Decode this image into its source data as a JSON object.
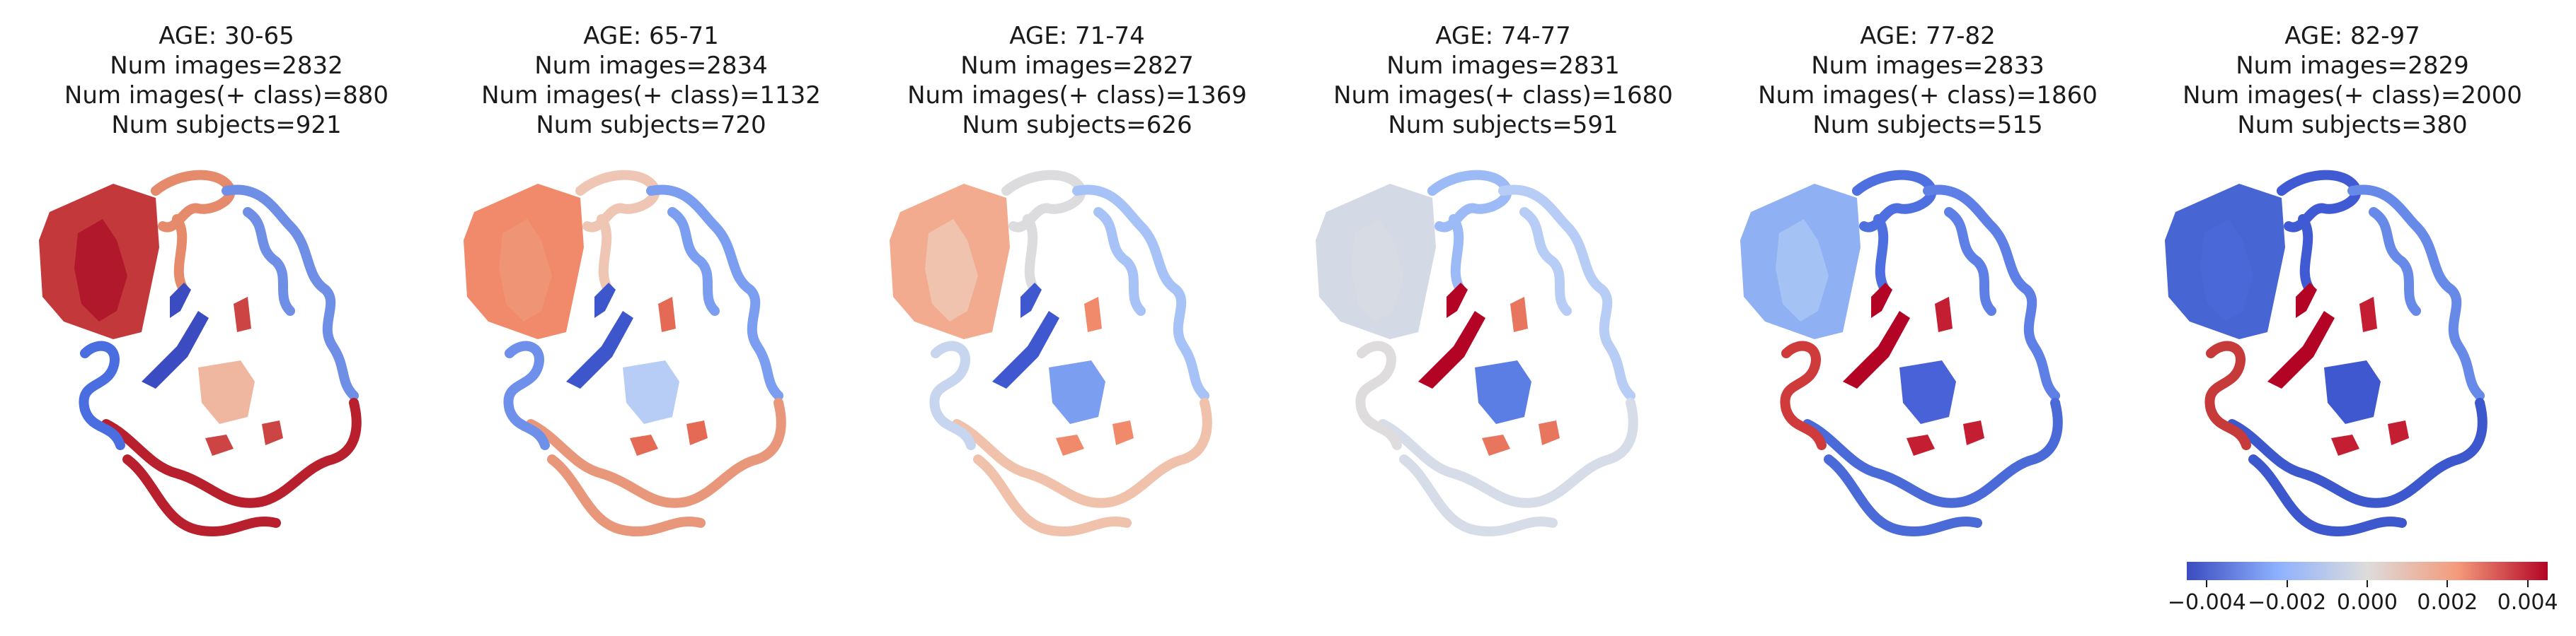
{
  "panels": [
    {
      "age_label": "AGE: 30-65",
      "num_images": "Num images=2832",
      "num_pos": "Num images(+ class)=880",
      "num_subjects": "Num subjects=921",
      "region_colors": {
        "cerebellum": "#c3383a",
        "cereb_inner": "#b2182b",
        "cortex_top": "#e58a6a",
        "cortex_right": "#6f8fe6",
        "cortex_bottom": "#b7202c",
        "cortex_left": "#4a6de0",
        "insula": "#3a4cc0",
        "thalamus": "#f0b7a0",
        "ventral": "#c44"
      }
    },
    {
      "age_label": "AGE: 65-71",
      "num_images": "Num images=2834",
      "num_pos": "Num images(+ class)=1132",
      "num_subjects": "Num subjects=720",
      "region_colors": {
        "cerebellum": "#f08a6b",
        "cereb_inner": "#ef9475",
        "cortex_top": "#efc6b3",
        "cortex_right": "#7b9ef0",
        "cortex_bottom": "#e9977a",
        "cortex_left": "#6f90ea",
        "insula": "#3e56cc",
        "thalamus": "#b7cdf5",
        "ventral": "#e46a55"
      }
    },
    {
      "age_label": "AGE: 71-74",
      "num_images": "Num images=2827",
      "num_pos": "Num images(+ class)=1369",
      "num_subjects": "Num subjects=626",
      "region_colors": {
        "cerebellum": "#f2ab8e",
        "cereb_inner": "#f0c3ae",
        "cortex_top": "#dcdcde",
        "cortex_right": "#a7c2f6",
        "cortex_bottom": "#f0c1ab",
        "cortex_left": "#c7d5ef",
        "insula": "#3f58cf",
        "thalamus": "#7b9ef0",
        "ventral": "#f08a6b"
      }
    },
    {
      "age_label": "AGE: 74-77",
      "num_images": "Num images=2831",
      "num_pos": "Num images(+ class)=1680",
      "num_subjects": "Num subjects=591",
      "region_colors": {
        "cerebellum": "#d3dae6",
        "cereb_inner": "#d7dbe3",
        "cortex_top": "#9cbaf5",
        "cortex_right": "#b7cdf5",
        "cortex_bottom": "#d6dce8",
        "cortex_left": "#dedcdc",
        "insula": "#b40426",
        "thalamus": "#5b7ee4",
        "ventral": "#e8765e"
      }
    },
    {
      "age_label": "AGE: 77-82",
      "num_images": "Num images=2833",
      "num_pos": "Num images(+ class)=1860",
      "num_subjects": "Num subjects=515",
      "region_colors": {
        "cerebellum": "#8fb1f3",
        "cereb_inner": "#a5c2f5",
        "cortex_top": "#4e6fe0",
        "cortex_right": "#5d7fe6",
        "cortex_bottom": "#4a6ad8",
        "cortex_left": "#cf3a3a",
        "insula": "#b40426",
        "thalamus": "#4a62d8",
        "ventral": "#c41e32"
      }
    },
    {
      "age_label": "AGE: 82-97",
      "num_images": "Num images=2829",
      "num_pos": "Num images(+ class)=2000",
      "num_subjects": "Num subjects=380",
      "region_colors": {
        "cerebellum": "#4865d4",
        "cereb_inner": "#4a68d8",
        "cortex_top": "#3f5ad2",
        "cortex_right": "#6789e8",
        "cortex_bottom": "#3d57cd",
        "cortex_left": "#c73a3a",
        "insula": "#b40426",
        "thalamus": "#3f58cf",
        "ventral": "#c41e32"
      }
    }
  ],
  "colorbar": {
    "ticks": [
      "−0.004",
      "−0.002",
      "0.000",
      "0.002",
      "0.004"
    ],
    "tick_values": [
      -0.004,
      -0.002,
      0.0,
      0.002,
      0.004
    ],
    "range": [
      -0.0045,
      0.0045
    ],
    "colormap": "coolwarm",
    "colors": [
      "#3b4cc0",
      "#8db0fe",
      "#dddcdc",
      "#f49a7b",
      "#b40426"
    ]
  }
}
